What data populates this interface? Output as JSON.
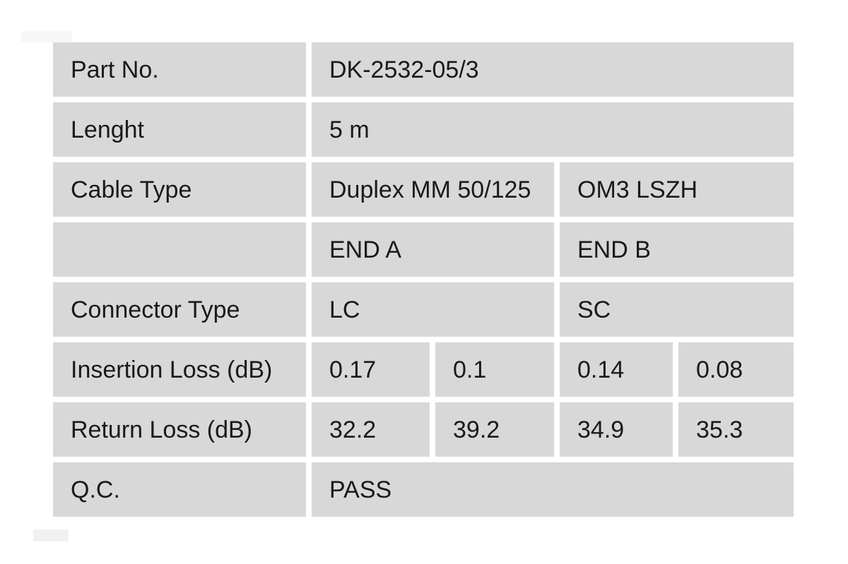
{
  "page": {
    "background_color": "#ffffff"
  },
  "table": {
    "cell_background_color": "#d8d8d8",
    "text_color": "#1a1a1a",
    "rows": [
      {
        "label": "Part No.",
        "cells": [
          {
            "text": "DK-2532-05/3"
          }
        ]
      },
      {
        "label": "Lenght",
        "cells": [
          {
            "text": "5 m"
          }
        ]
      },
      {
        "label": "Cable Type",
        "cells": [
          {
            "text": "Duplex MM 50/125"
          },
          {
            "text": "OM3 LSZH"
          }
        ]
      },
      {
        "label": "",
        "cells": [
          {
            "text": "END A"
          },
          {
            "text": "END B"
          }
        ]
      },
      {
        "label": "Connector Type",
        "cells": [
          {
            "text": "LC"
          },
          {
            "text": "SC"
          }
        ]
      },
      {
        "label": "Insertion Loss (dB)",
        "cells": [
          {
            "text": "0.17"
          },
          {
            "text": "0.1"
          },
          {
            "text": "0.14"
          },
          {
            "text": "0.08"
          }
        ]
      },
      {
        "label": "Return Loss (dB)",
        "cells": [
          {
            "text": "32.2"
          },
          {
            "text": "39.2"
          },
          {
            "text": "34.9"
          },
          {
            "text": "35.3"
          }
        ]
      },
      {
        "label": "Q.C.",
        "cells": [
          {
            "text": "PASS"
          }
        ]
      }
    ]
  }
}
